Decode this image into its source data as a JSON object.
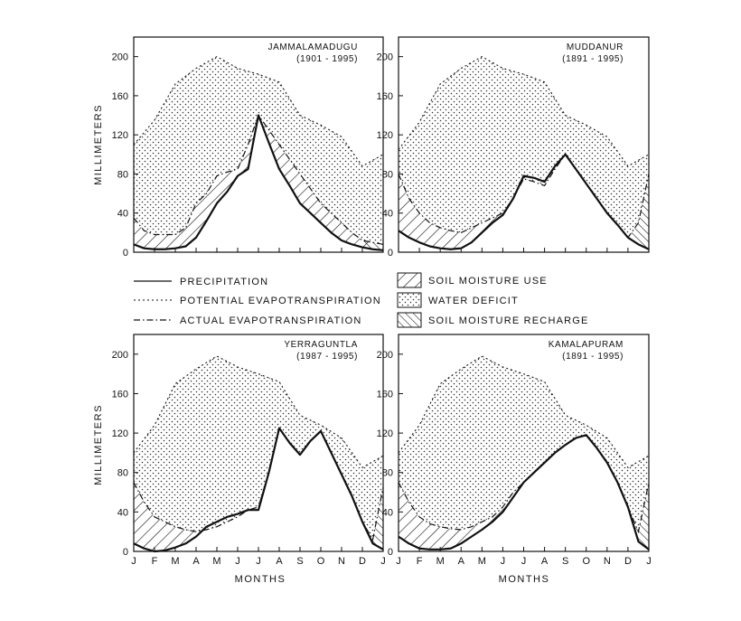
{
  "chart_data": {
    "type": "area",
    "months": [
      "J",
      "F",
      "M",
      "A",
      "M",
      "J",
      "J",
      "A",
      "S",
      "O",
      "N",
      "D",
      "J"
    ],
    "ylim": [
      0,
      220
    ],
    "yticks": [
      0,
      40,
      80,
      120,
      160,
      200
    ],
    "ylabel": "MILLIMETERS",
    "xlabel": "MONTHS",
    "legend": {
      "precipitation": "PRECIPITATION",
      "pet": "POTENTIAL EVAPOTRANSPIRATION",
      "aet": "ACTUAL EVAPOTRANSPIRATION",
      "use": "SOIL MOISTURE USE",
      "deficit": "WATER DEFICIT",
      "recharge": "SOIL MOISTURE RECHARGE"
    },
    "panels": [
      {
        "name": "JAMMALAMADUGU",
        "period": "(1901 - 1995)",
        "x": [
          0,
          0.5,
          1,
          1.5,
          2,
          2.5,
          3,
          3.5,
          4,
          4.5,
          5,
          5.5,
          6,
          6.5,
          7,
          7.5,
          8,
          8.5,
          9,
          9.5,
          10,
          10.5,
          11,
          11.5,
          12
        ],
        "pet": [
          110,
          135,
          172,
          188,
          200,
          188,
          182,
          174,
          140,
          130,
          118,
          88,
          100
        ],
        "aet": [
          35,
          22,
          18,
          18,
          18,
          25,
          50,
          60,
          78,
          82,
          85,
          110,
          140,
          125,
          110,
          95,
          80,
          65,
          50,
          40,
          30,
          20,
          12,
          10,
          8
        ],
        "precipitation": [
          8,
          4,
          3,
          3,
          4,
          6,
          15,
          32,
          50,
          62,
          78,
          85,
          140,
          112,
          85,
          68,
          50,
          40,
          30,
          20,
          12,
          8,
          5,
          3,
          2
        ]
      },
      {
        "name": "MUDDANUR",
        "period": "(1891 - 1995)",
        "x": [
          0,
          0.5,
          1,
          1.5,
          2,
          2.5,
          3,
          3.5,
          4,
          4.5,
          5,
          5.5,
          6,
          6.5,
          7,
          7.5,
          8,
          8.5,
          9,
          9.5,
          10,
          10.5,
          11,
          11.5,
          12
        ],
        "pet": [
          105,
          133,
          172,
          188,
          200,
          188,
          182,
          174,
          140,
          130,
          118,
          88,
          100
        ],
        "aet": [
          80,
          55,
          40,
          30,
          25,
          22,
          20,
          25,
          30,
          35,
          40,
          55,
          75,
          72,
          68,
          85,
          100,
          85,
          70,
          55,
          40,
          28,
          15,
          30,
          80
        ],
        "precipitation": [
          22,
          15,
          10,
          6,
          4,
          3,
          4,
          10,
          20,
          30,
          38,
          55,
          78,
          76,
          72,
          88,
          100,
          85,
          70,
          55,
          40,
          28,
          15,
          8,
          3
        ]
      },
      {
        "name": "YERRAGUNTLA",
        "period": "(1987 - 1995)",
        "x": [
          0,
          0.5,
          1,
          1.5,
          2,
          2.5,
          3,
          3.5,
          4,
          4.5,
          5,
          5.5,
          6,
          6.5,
          7,
          7.5,
          8,
          8.5,
          9,
          9.5,
          10,
          10.5,
          11,
          11.5,
          12
        ],
        "pet": [
          100,
          128,
          170,
          185,
          198,
          187,
          180,
          172,
          138,
          128,
          115,
          85,
          97
        ],
        "aet": [
          70,
          50,
          35,
          30,
          25,
          22,
          20,
          22,
          25,
          30,
          35,
          42,
          45,
          80,
          125,
          110,
          98,
          112,
          122,
          100,
          78,
          56,
          30,
          12,
          65
        ],
        "precipitation": [
          8,
          3,
          0,
          1,
          4,
          8,
          15,
          25,
          30,
          35,
          38,
          42,
          42,
          80,
          125,
          110,
          98,
          112,
          122,
          100,
          78,
          56,
          30,
          8,
          2
        ]
      },
      {
        "name": "KAMALAPURAM",
        "period": "(1891 - 1995)",
        "x": [
          0,
          0.5,
          1,
          1.5,
          2,
          2.5,
          3,
          3.5,
          4,
          4.5,
          5,
          5.5,
          6,
          6.5,
          7,
          7.5,
          8,
          8.5,
          9,
          9.5,
          10,
          10.5,
          11,
          11.5,
          12
        ],
        "pet": [
          100,
          128,
          170,
          185,
          198,
          187,
          180,
          172,
          138,
          128,
          115,
          85,
          97
        ],
        "aet": [
          70,
          50,
          35,
          28,
          25,
          23,
          22,
          25,
          30,
          35,
          45,
          60,
          70,
          80,
          90,
          100,
          108,
          115,
          118,
          105,
          90,
          70,
          45,
          20,
          70
        ],
        "precipitation": [
          15,
          8,
          3,
          2,
          2,
          3,
          8,
          15,
          22,
          30,
          40,
          55,
          70,
          80,
          90,
          100,
          108,
          115,
          118,
          105,
          90,
          70,
          45,
          10,
          2
        ]
      }
    ]
  }
}
